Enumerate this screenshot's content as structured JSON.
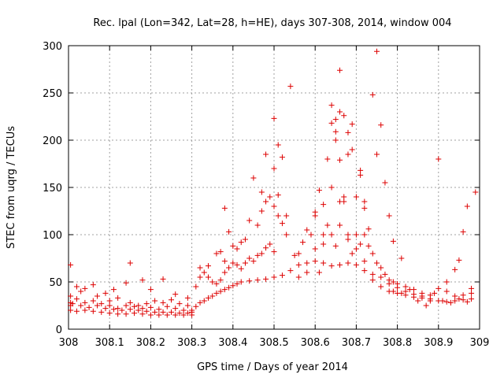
{
  "chart_data": {
    "type": "scatter",
    "title": "Rec. lpal (Lon=342, Lat=28, h=HE), days 307-308, 2014, window 004",
    "xlabel": "GPS time / Days of year 2014",
    "ylabel": "STEC from uqrg / TECUs",
    "xlim": [
      308,
      309
    ],
    "ylim": [
      0,
      300
    ],
    "xticks": [
      "308",
      "308.1",
      "308.2",
      "308.3",
      "308.4",
      "308.5",
      "308.6",
      "308.7",
      "308.8",
      "308.9",
      "309"
    ],
    "yticks": [
      "0",
      "50",
      "100",
      "150",
      "200",
      "250",
      "300"
    ],
    "grid": true,
    "marker": "+",
    "color": "#dd0000",
    "series": [
      {
        "values": [
          [
            308.005,
            68
          ],
          [
            308.03,
            40
          ],
          [
            308.06,
            47
          ],
          [
            308.09,
            38
          ],
          [
            308.11,
            42
          ],
          [
            308.14,
            49
          ],
          [
            308.15,
            70
          ],
          [
            308.18,
            52
          ],
          [
            308.2,
            42
          ],
          [
            308.23,
            53
          ],
          [
            308.26,
            37
          ],
          [
            308.29,
            33
          ],
          [
            308.005,
            35
          ],
          [
            308.02,
            45
          ],
          [
            308.04,
            43
          ],
          [
            308.07,
            35
          ],
          [
            308.1,
            30
          ],
          [
            308.12,
            33
          ],
          [
            308.15,
            28
          ],
          [
            308.17,
            25
          ],
          [
            308.19,
            27
          ],
          [
            308.21,
            30
          ],
          [
            308.23,
            28
          ],
          [
            308.25,
            31
          ],
          [
            308.27,
            27
          ],
          [
            308.29,
            25
          ],
          [
            308.005,
            28
          ],
          [
            308.02,
            32
          ],
          [
            308.04,
            28
          ],
          [
            308.06,
            30
          ],
          [
            308.08,
            27
          ],
          [
            308.1,
            25
          ],
          [
            308.12,
            22
          ],
          [
            308.14,
            25
          ],
          [
            308.16,
            24
          ],
          [
            308.18,
            22
          ],
          [
            308.2,
            23
          ],
          [
            308.22,
            21
          ],
          [
            308.24,
            24
          ],
          [
            308.26,
            22
          ],
          [
            308.28,
            20
          ],
          [
            308.3,
            18
          ],
          [
            308.005,
            25
          ],
          [
            308.01,
            27
          ],
          [
            308.03,
            25
          ],
          [
            308.05,
            23
          ],
          [
            308.07,
            25
          ],
          [
            308.09,
            22
          ],
          [
            308.11,
            21
          ],
          [
            308.13,
            20
          ],
          [
            308.15,
            21
          ],
          [
            308.17,
            20
          ],
          [
            308.19,
            19
          ],
          [
            308.21,
            18
          ],
          [
            308.23,
            18
          ],
          [
            308.25,
            18
          ],
          [
            308.27,
            17
          ],
          [
            308.29,
            17
          ],
          [
            308.005,
            20
          ],
          [
            308.02,
            19
          ],
          [
            308.04,
            20
          ],
          [
            308.06,
            19
          ],
          [
            308.08,
            18
          ],
          [
            308.1,
            17
          ],
          [
            308.12,
            16
          ],
          [
            308.14,
            16
          ],
          [
            308.16,
            17
          ],
          [
            308.18,
            16
          ],
          [
            308.2,
            15
          ],
          [
            308.22,
            15
          ],
          [
            308.24,
            15
          ],
          [
            308.26,
            15
          ],
          [
            308.28,
            15
          ],
          [
            308.3,
            15
          ],
          [
            308.3,
            20
          ],
          [
            308.31,
            24
          ],
          [
            308.32,
            28
          ],
          [
            308.33,
            30
          ],
          [
            308.34,
            33
          ],
          [
            308.35,
            35
          ],
          [
            308.36,
            38
          ],
          [
            308.37,
            40
          ],
          [
            308.38,
            42
          ],
          [
            308.39,
            44
          ],
          [
            308.4,
            46
          ],
          [
            308.41,
            48
          ],
          [
            308.42,
            50
          ],
          [
            308.44,
            51
          ],
          [
            308.46,
            52
          ],
          [
            308.48,
            53
          ],
          [
            308.5,
            55
          ],
          [
            308.52,
            57
          ],
          [
            308.54,
            62
          ],
          [
            308.56,
            68
          ],
          [
            308.58,
            70
          ],
          [
            308.6,
            72
          ],
          [
            308.62,
            70
          ],
          [
            308.64,
            67
          ],
          [
            308.66,
            68
          ],
          [
            308.68,
            70
          ],
          [
            308.7,
            68
          ],
          [
            308.72,
            62
          ],
          [
            308.74,
            52
          ],
          [
            308.76,
            45
          ],
          [
            308.78,
            40
          ],
          [
            308.8,
            38
          ],
          [
            308.82,
            36
          ],
          [
            308.84,
            34
          ],
          [
            308.86,
            33
          ],
          [
            308.88,
            32
          ],
          [
            308.9,
            30
          ],
          [
            308.92,
            29
          ],
          [
            308.94,
            30
          ],
          [
            308.96,
            31
          ],
          [
            308.98,
            32
          ],
          [
            308.31,
            45
          ],
          [
            308.32,
            55
          ],
          [
            308.33,
            60
          ],
          [
            308.34,
            55
          ],
          [
            308.35,
            50
          ],
          [
            308.36,
            48
          ],
          [
            308.37,
            52
          ],
          [
            308.38,
            60
          ],
          [
            308.39,
            65
          ],
          [
            308.4,
            70
          ],
          [
            308.41,
            68
          ],
          [
            308.42,
            64
          ],
          [
            308.43,
            70
          ],
          [
            308.44,
            75
          ],
          [
            308.45,
            72
          ],
          [
            308.46,
            78
          ],
          [
            308.47,
            80
          ],
          [
            308.48,
            86
          ],
          [
            308.49,
            90
          ],
          [
            308.5,
            82
          ],
          [
            308.32,
            65
          ],
          [
            308.34,
            67
          ],
          [
            308.36,
            80
          ],
          [
            308.38,
            72
          ],
          [
            308.4,
            88
          ],
          [
            308.42,
            92
          ],
          [
            308.44,
            115
          ],
          [
            308.46,
            110
          ],
          [
            308.47,
            125
          ],
          [
            308.48,
            135
          ],
          [
            308.49,
            140
          ],
          [
            308.5,
            130
          ],
          [
            308.51,
            120
          ],
          [
            308.52,
            112
          ],
          [
            308.53,
            100
          ],
          [
            308.37,
            82
          ],
          [
            308.38,
            128
          ],
          [
            308.39,
            103
          ],
          [
            308.41,
            85
          ],
          [
            308.43,
            95
          ],
          [
            308.45,
            160
          ],
          [
            308.47,
            145
          ],
          [
            308.48,
            185
          ],
          [
            308.5,
            223
          ],
          [
            308.5,
            170
          ],
          [
            308.51,
            195
          ],
          [
            308.51,
            142
          ],
          [
            308.52,
            182
          ],
          [
            308.53,
            120
          ],
          [
            308.54,
            257
          ],
          [
            308.55,
            78
          ],
          [
            308.56,
            80
          ],
          [
            308.57,
            92
          ],
          [
            308.58,
            105
          ],
          [
            308.59,
            100
          ],
          [
            308.6,
            124
          ],
          [
            308.61,
            147
          ],
          [
            308.62,
            132
          ],
          [
            308.63,
            180
          ],
          [
            308.64,
            218
          ],
          [
            308.64,
            237
          ],
          [
            308.65,
            222
          ],
          [
            308.65,
            200
          ],
          [
            308.65,
            209
          ],
          [
            308.66,
            274
          ],
          [
            308.66,
            230
          ],
          [
            308.66,
            179
          ],
          [
            308.67,
            140
          ],
          [
            308.67,
            226
          ],
          [
            308.68,
            185
          ],
          [
            308.68,
            208
          ],
          [
            308.69,
            217
          ],
          [
            308.69,
            190
          ],
          [
            308.7,
            140
          ],
          [
            308.71,
            168
          ],
          [
            308.71,
            163
          ],
          [
            308.72,
            135
          ],
          [
            308.72,
            128
          ],
          [
            308.73,
            106
          ],
          [
            308.74,
            248
          ],
          [
            308.75,
            294
          ],
          [
            308.75,
            185
          ],
          [
            308.76,
            216
          ],
          [
            308.77,
            155
          ],
          [
            308.78,
            120
          ],
          [
            308.79,
            93
          ],
          [
            308.56,
            55
          ],
          [
            308.58,
            60
          ],
          [
            308.6,
            85
          ],
          [
            308.61,
            60
          ],
          [
            308.62,
            90
          ],
          [
            308.63,
            110
          ],
          [
            308.64,
            100
          ],
          [
            308.65,
            88
          ],
          [
            308.66,
            110
          ],
          [
            308.67,
            135
          ],
          [
            308.68,
            100
          ],
          [
            308.69,
            80
          ],
          [
            308.7,
            85
          ],
          [
            308.71,
            90
          ],
          [
            308.72,
            100
          ],
          [
            308.73,
            88
          ],
          [
            308.74,
            80
          ],
          [
            308.75,
            70
          ],
          [
            308.76,
            65
          ],
          [
            308.77,
            58
          ],
          [
            308.78,
            52
          ],
          [
            308.79,
            50
          ],
          [
            308.8,
            48
          ],
          [
            308.81,
            75
          ],
          [
            308.82,
            45
          ],
          [
            308.84,
            42
          ],
          [
            308.86,
            38
          ],
          [
            308.88,
            36
          ],
          [
            308.9,
            43
          ],
          [
            308.92,
            50
          ],
          [
            308.94,
            63
          ],
          [
            308.95,
            73
          ],
          [
            308.96,
            103
          ],
          [
            308.97,
            130
          ],
          [
            308.99,
            145
          ],
          [
            308.98,
            43
          ],
          [
            308.6,
            120
          ],
          [
            308.62,
            100
          ],
          [
            308.64,
            150
          ],
          [
            308.66,
            135
          ],
          [
            308.68,
            95
          ],
          [
            308.7,
            100
          ],
          [
            308.72,
            72
          ],
          [
            308.74,
            58
          ],
          [
            308.76,
            55
          ],
          [
            308.78,
            48
          ],
          [
            308.8,
            44
          ],
          [
            308.82,
            40
          ],
          [
            308.84,
            37
          ],
          [
            308.86,
            35
          ],
          [
            308.88,
            30
          ],
          [
            308.9,
            180
          ],
          [
            308.92,
            40
          ],
          [
            308.94,
            35
          ],
          [
            308.96,
            36
          ],
          [
            308.98,
            38
          ],
          [
            308.79,
            40
          ],
          [
            308.81,
            38
          ],
          [
            308.83,
            42
          ],
          [
            308.85,
            30
          ],
          [
            308.87,
            25
          ],
          [
            308.89,
            38
          ],
          [
            308.91,
            30
          ],
          [
            308.93,
            28
          ],
          [
            308.95,
            32
          ],
          [
            308.97,
            29
          ]
        ]
      }
    ]
  }
}
